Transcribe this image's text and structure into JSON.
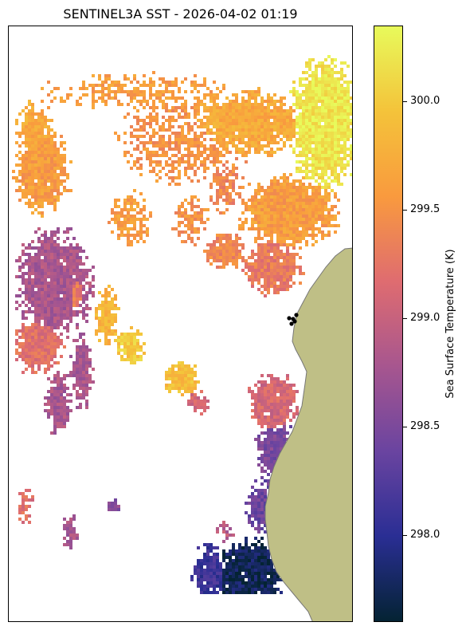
{
  "chart_data": {
    "type": "heatmap",
    "title": "SENTINEL3A SST - 2026-04-02 01:19",
    "colorbar": {
      "label": "Sea Surface Temperature (K)",
      "vmin": 297.6,
      "vmax": 300.35,
      "ticks": [
        298.0,
        298.5,
        299.0,
        299.5,
        300.0
      ],
      "tick_labels": [
        "298.0",
        "298.5",
        "299.0",
        "299.5",
        "300.0"
      ],
      "colormap": "thermal",
      "colors": [
        "#042333",
        "#2a2e94",
        "#6a44a0",
        "#a7568f",
        "#df6c70",
        "#f99a3e",
        "#f4c33a",
        "#e8fa5b"
      ]
    },
    "land_color": "#bfbf86",
    "coastline_color": "#777777",
    "markers": {
      "color": "#000000",
      "count": 5
    },
    "missing_data": "white"
  }
}
